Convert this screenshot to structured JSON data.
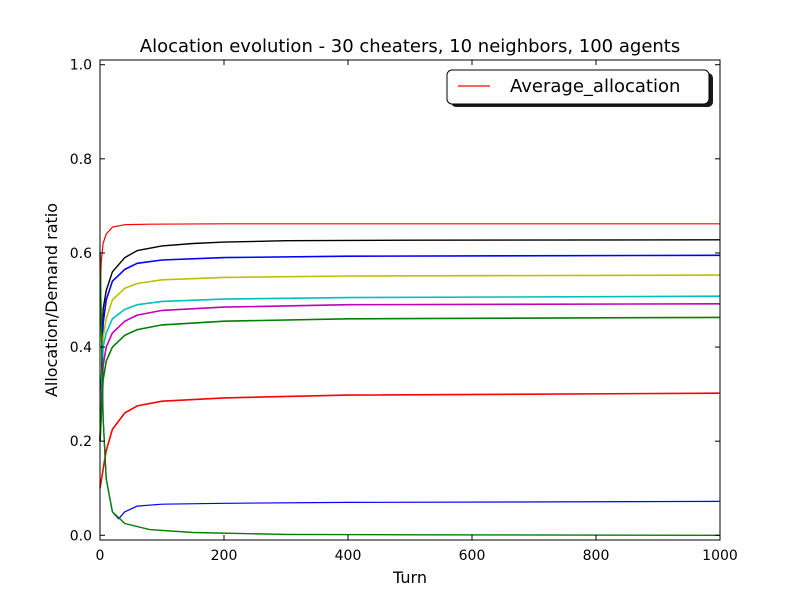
{
  "chart_data": {
    "type": "line",
    "title": "Alocation evolution - 30 cheaters, 10 neighbors, 100 agents",
    "xlabel": "Turn",
    "ylabel": "Allocation/Demand ratio",
    "xlim": [
      0,
      1000
    ],
    "ylim": [
      -0.01,
      1.01
    ],
    "xticks": [
      0,
      200,
      400,
      600,
      800,
      1000
    ],
    "xtick_labels": [
      "0",
      "200",
      "400",
      "600",
      "800",
      "1000"
    ],
    "yticks": [
      0.0,
      0.2,
      0.4,
      0.6,
      0.8,
      1.0
    ],
    "ytick_labels": [
      "0.0",
      "0.2",
      "0.4",
      "0.6",
      "0.8",
      "1.0"
    ],
    "grid": false,
    "legend": {
      "placement": "top-right",
      "entries": [
        "Average_allocation"
      ]
    },
    "series": [
      {
        "name": "Average_allocation",
        "color": "#ff0000",
        "stroke": 1.2,
        "x": [
          0,
          2,
          5,
          10,
          20,
          40,
          80,
          200,
          1000
        ],
        "y": [
          0.5,
          0.58,
          0.62,
          0.64,
          0.655,
          0.66,
          0.661,
          0.662,
          0.662
        ]
      },
      {
        "color": "#000000",
        "stroke": 1.4,
        "x": [
          0,
          5,
          10,
          20,
          40,
          60,
          100,
          150,
          200,
          300,
          500,
          1000
        ],
        "y": [
          0.2,
          0.48,
          0.52,
          0.56,
          0.59,
          0.605,
          0.615,
          0.62,
          0.623,
          0.626,
          0.627,
          0.628
        ]
      },
      {
        "color": "#0000ff",
        "stroke": 1.6,
        "x": [
          0,
          5,
          10,
          20,
          40,
          60,
          100,
          200,
          400,
          1000
        ],
        "y": [
          0.2,
          0.45,
          0.5,
          0.54,
          0.565,
          0.578,
          0.585,
          0.59,
          0.593,
          0.595
        ]
      },
      {
        "color": "#bfbf00",
        "stroke": 1.6,
        "x": [
          0,
          5,
          10,
          20,
          40,
          60,
          100,
          200,
          400,
          1000
        ],
        "y": [
          0.2,
          0.42,
          0.46,
          0.5,
          0.525,
          0.535,
          0.543,
          0.548,
          0.551,
          0.553
        ]
      },
      {
        "color": "#00bfbf",
        "stroke": 1.6,
        "x": [
          0,
          5,
          10,
          20,
          40,
          60,
          100,
          200,
          400,
          1000
        ],
        "y": [
          0.2,
          0.4,
          0.43,
          0.46,
          0.48,
          0.49,
          0.497,
          0.502,
          0.505,
          0.508
        ]
      },
      {
        "color": "#bf00bf",
        "stroke": 1.6,
        "x": [
          0,
          5,
          10,
          20,
          40,
          60,
          100,
          200,
          400,
          1000
        ],
        "y": [
          0.2,
          0.36,
          0.4,
          0.43,
          0.455,
          0.468,
          0.478,
          0.485,
          0.49,
          0.492
        ]
      },
      {
        "color": "#008000",
        "stroke": 1.6,
        "x": [
          0,
          5,
          10,
          20,
          40,
          60,
          100,
          200,
          400,
          1000
        ],
        "y": [
          0.2,
          0.33,
          0.37,
          0.4,
          0.425,
          0.437,
          0.447,
          0.455,
          0.46,
          0.463
        ]
      },
      {
        "color": "#ff0000",
        "stroke": 1.6,
        "x": [
          0,
          5,
          10,
          20,
          40,
          60,
          100,
          200,
          400,
          1000
        ],
        "y": [
          0.1,
          0.14,
          0.18,
          0.225,
          0.26,
          0.275,
          0.285,
          0.292,
          0.298,
          0.302
        ]
      },
      {
        "color": "#0000ff",
        "stroke": 1.2,
        "x": [
          0,
          5,
          10,
          20,
          30,
          40,
          60,
          100,
          200,
          400,
          1000
        ],
        "y": [
          0.6,
          0.25,
          0.12,
          0.05,
          0.035,
          0.05,
          0.062,
          0.066,
          0.068,
          0.07,
          0.072
        ]
      },
      {
        "color": "#008000",
        "stroke": 1.4,
        "x": [
          0,
          5,
          10,
          20,
          40,
          80,
          150,
          300,
          500,
          1000
        ],
        "y": [
          0.6,
          0.25,
          0.12,
          0.05,
          0.025,
          0.012,
          0.006,
          0.002,
          0.001,
          0.0
        ]
      }
    ]
  }
}
